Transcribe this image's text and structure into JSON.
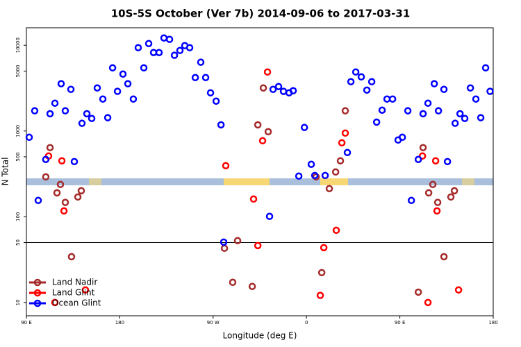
{
  "chart_data": {
    "type": "scatter",
    "title": "10S-5S October (Ver 7b)   2014-09-06 to 2017-03-31",
    "x_label": "Longitude (deg E)",
    "y_label": "N Total",
    "xlim": [
      90,
      540
    ],
    "ylim": [
      7,
      16000
    ],
    "log_y": true,
    "legend": "bottom-left",
    "hline": 50,
    "xticks": [
      {
        "value": 90,
        "label": "90 E"
      },
      {
        "value": 180,
        "label": "180"
      },
      {
        "value": 270,
        "label": "90 W"
      },
      {
        "value": 360,
        "label": "0"
      },
      {
        "value": 450,
        "label": "90 E"
      },
      {
        "value": 540,
        "label": "180"
      }
    ],
    "yticks": [
      10,
      50,
      100,
      500,
      1000,
      5000,
      10000
    ],
    "series": [
      {
        "name": "Land Nadir",
        "color": "#a52a2a",
        "x": [
          108.7,
          112.8,
          119.5,
          122.8,
          127.5,
          133.5,
          139.6,
          142.9,
          280.9,
          288.9,
          293.6,
          307.7,
          313.1,
          318.4,
          323.1,
          369.3,
          382,
          388.1,
          392.7,
          397.4,
          374.7,
          467.8,
          472.4,
          477.8,
          481.8,
          486.5,
          492.5,
          499.2,
          502.6
        ],
        "values": [
          292,
          640,
          190,
          238,
          147,
          34.2,
          170,
          201,
          42.9,
          17.2,
          52.6,
          15.4,
          1180,
          3180,
          982,
          292,
          213,
          333,
          449,
          1720,
          22.3,
          13.2,
          640,
          190,
          238,
          147,
          34.2,
          170,
          201
        ]
      },
      {
        "name": "Land Glint",
        "color": "#ff0000",
        "x": [
          111.4,
          117.5,
          124.2,
          126.2,
          146.9,
          282.2,
          309,
          313.1,
          317.7,
          322.4,
          373.3,
          376.7,
          388.7,
          394.1,
          397.4,
          471.8,
          477.1,
          484.5,
          485.8,
          506.6
        ],
        "values": [
          511,
          10,
          449,
          117,
          14.0,
          394,
          161,
          46.1,
          770,
          4880,
          12.1,
          43.6,
          69.5,
          728,
          945,
          511,
          10,
          449,
          117,
          14.0
        ]
      },
      {
        "name": "Ocean Glint",
        "color": "#0000ff",
        "x": [
          92.7,
          98,
          101.4,
          108.7,
          112.8,
          117.5,
          123.5,
          127.5,
          132.9,
          136.2,
          143.6,
          148.3,
          153,
          158.3,
          163.7,
          168.4,
          173.1,
          177.8,
          183.1,
          187.8,
          193.1,
          197.8,
          203.2,
          207.9,
          212.6,
          217.9,
          222.6,
          228,
          232.7,
          238,
          242.7,
          247.4,
          252.8,
          258.1,
          262.8,
          267.5,
          272.9,
          277.6,
          280.2,
          324.4,
          327.8,
          333.1,
          337.8,
          343.2,
          347.2,
          352.6,
          358,
          364.6,
          368,
          378,
          399.4,
          402.8,
          407.5,
          412.8,
          418.2,
          422.9,
          427.6,
          432.9,
          437.6,
          443,
          448.3,
          452.4,
          457.7,
          461.1,
          467.8,
          472.4,
          477.1,
          483.2,
          487.2,
          492.5,
          495.9,
          503.3,
          508,
          512.6,
          518,
          523.3,
          528,
          532.7,
          537
        ],
        "values": [
          845,
          1720,
          155,
          466,
          1590,
          2110,
          3560,
          1720,
          3060,
          440,
          1230,
          1590,
          1400,
          3180,
          2360,
          1430,
          5460,
          2900,
          4610,
          3560,
          2360,
          9370,
          5460,
          10470,
          8220,
          8220,
          12160,
          11720,
          7640,
          8690,
          9910,
          9370,
          4200,
          6340,
          4200,
          2790,
          2230,
          1180,
          50.6,
          101,
          3060,
          3300,
          2900,
          2790,
          2950,
          298,
          1100,
          409,
          303,
          303,
          561,
          3760,
          4880,
          4280,
          3000,
          3760,
          1270,
          1750,
          2360,
          2360,
          785,
          845,
          1720,
          155,
          466,
          1590,
          2110,
          3560,
          1720,
          3060,
          440,
          1230,
          1590,
          1400,
          3180,
          2360,
          1430,
          5460,
          2900
        ]
      }
    ]
  }
}
